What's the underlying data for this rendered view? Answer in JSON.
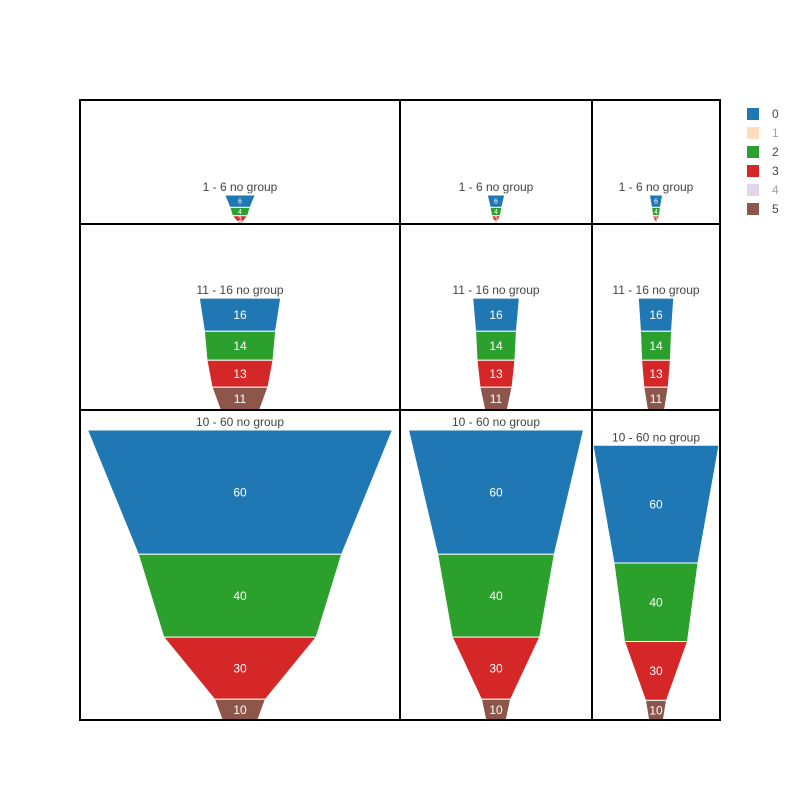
{
  "chart_data": {
    "type": "funnel",
    "panels": [
      {
        "row": 0,
        "col": 0,
        "title": "1 - 6 no group",
        "segments": [
          {
            "trace": "0",
            "value": 6
          },
          {
            "trace": "2",
            "value": 4
          },
          {
            "trace": "3",
            "value": 3
          },
          {
            "trace": "5",
            "value": 1
          }
        ]
      },
      {
        "row": 0,
        "col": 1,
        "title": "1 - 6 no group",
        "segments": [
          {
            "trace": "0",
            "value": 6
          },
          {
            "trace": "2",
            "value": 4
          },
          {
            "trace": "3",
            "value": 3
          },
          {
            "trace": "5",
            "value": 1
          }
        ]
      },
      {
        "row": 0,
        "col": 2,
        "title": "1 - 6 no group",
        "segments": [
          {
            "trace": "0",
            "value": 6
          },
          {
            "trace": "2",
            "value": 4
          },
          {
            "trace": "3",
            "value": 3
          },
          {
            "trace": "5",
            "value": 1
          }
        ]
      },
      {
        "row": 1,
        "col": 0,
        "title": "11 - 16 no group",
        "segments": [
          {
            "trace": "0",
            "value": 16
          },
          {
            "trace": "2",
            "value": 14
          },
          {
            "trace": "3",
            "value": 13
          },
          {
            "trace": "5",
            "value": 11
          }
        ]
      },
      {
        "row": 1,
        "col": 1,
        "title": "11 - 16 no group",
        "segments": [
          {
            "trace": "0",
            "value": 16
          },
          {
            "trace": "2",
            "value": 14
          },
          {
            "trace": "3",
            "value": 13
          },
          {
            "trace": "5",
            "value": 11
          }
        ]
      },
      {
        "row": 1,
        "col": 2,
        "title": "11 - 16 no group",
        "segments": [
          {
            "trace": "0",
            "value": 16
          },
          {
            "trace": "2",
            "value": 14
          },
          {
            "trace": "3",
            "value": 13
          },
          {
            "trace": "5",
            "value": 11
          }
        ]
      },
      {
        "row": 2,
        "col": 0,
        "title": "10 - 60 no group",
        "segments": [
          {
            "trace": "0",
            "value": 60
          },
          {
            "trace": "2",
            "value": 40
          },
          {
            "trace": "3",
            "value": 30
          },
          {
            "trace": "5",
            "value": 10
          }
        ]
      },
      {
        "row": 2,
        "col": 1,
        "title": "10 - 60 no group",
        "segments": [
          {
            "trace": "0",
            "value": 60
          },
          {
            "trace": "2",
            "value": 40
          },
          {
            "trace": "3",
            "value": 30
          },
          {
            "trace": "5",
            "value": 10
          }
        ]
      },
      {
        "row": 2,
        "col": 2,
        "title": "10 - 60 no group",
        "segments": [
          {
            "trace": "0",
            "value": 60
          },
          {
            "trace": "2",
            "value": 40
          },
          {
            "trace": "3",
            "value": 30
          },
          {
            "trace": "5",
            "value": 10
          }
        ]
      }
    ],
    "legend": {
      "position": "right",
      "items": [
        {
          "name": "0",
          "color": "#1f77b4",
          "visible": true
        },
        {
          "name": "1",
          "color": "#ffbb78",
          "visible": false
        },
        {
          "name": "2",
          "color": "#2ca02c",
          "visible": true
        },
        {
          "name": "3",
          "color": "#d62728",
          "visible": true
        },
        {
          "name": "4",
          "color": "#c5b0d5",
          "visible": false
        },
        {
          "name": "5",
          "color": "#8c564b",
          "visible": true
        }
      ]
    }
  }
}
